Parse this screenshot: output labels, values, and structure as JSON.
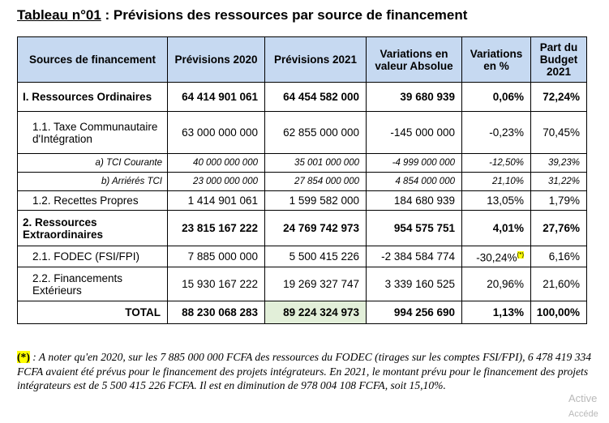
{
  "title": {
    "lead": "Tableau n°01",
    "rest": " : Prévisions des ressources par source de financement"
  },
  "table": {
    "headers": [
      "Sources de financement",
      "Prévisions 2020",
      "Prévisions 2021",
      "Variations en valeur Absolue",
      "Variations en %",
      "Part du Budget 2021"
    ],
    "rows": [
      {
        "label": "I. Ressources Ordinaires",
        "p2020": "64 414 901 061",
        "p2021": "64 454 582 000",
        "var_abs": "39 680 939",
        "var_pct": "0,06%",
        "part": "72,24%"
      },
      {
        "label": "1.1. Taxe Communautaire d'Intégration",
        "p2020": "63 000 000 000",
        "p2021": "62 855 000 000",
        "var_abs": "-145 000 000",
        "var_pct": "-0,23%",
        "part": "70,45%"
      },
      {
        "label": "a) TCI Courante",
        "p2020": "40 000 000 000",
        "p2021": "35 001 000 000",
        "var_abs": "-4 999 000 000",
        "var_pct": "-12,50%",
        "part": "39,23%"
      },
      {
        "label": "b) Arriérés TCI",
        "p2020": "23 000 000 000",
        "p2021": "27 854 000 000",
        "var_abs": "4 854 000 000",
        "var_pct": "21,10%",
        "part": "31,22%"
      },
      {
        "label": "1.2. Recettes Propres",
        "p2020": "1 414 901 061",
        "p2021": "1 599 582 000",
        "var_abs": "184 680 939",
        "var_pct": "13,05%",
        "part": "1,79%"
      },
      {
        "label": "2. Ressources Extraordinaires",
        "p2020": "23 815 167 222",
        "p2021": "24 769 742 973",
        "var_abs": "954 575 751",
        "var_pct": "4,01%",
        "part": "27,76%"
      },
      {
        "label": "2.1. FODEC (FSI/FPI)",
        "p2020": "7 885 000 000",
        "p2021": "5 500 415 226",
        "var_abs": "-2 384 584 774",
        "var_pct": "-30,24%",
        "var_pct_mark": "(*)",
        "part": "6,16%"
      },
      {
        "label": "2.2. Financements Extérieurs",
        "p2020": "15 930 167 222",
        "p2021": "19 269 327 747",
        "var_abs": "3 339 160 525",
        "var_pct": "20,96%",
        "part": "21,60%"
      },
      {
        "label": "TOTAL",
        "p2020": "88 230 068 283",
        "p2021": "89 224 324 973",
        "var_abs": "994 256 690",
        "var_pct": "1,13%",
        "part": "100,00%"
      }
    ]
  },
  "note": {
    "mark": "(*)",
    "text": " : A noter qu'en 2020, sur les 7 885 000 000 FCFA des ressources du FODEC (tirages sur les comptes FSI/FPI), 6 478 419 334 FCFA avaient été prévus pour le financement des projets intégrateurs. En 2021, le montant prévu pour le financement des projets intégrateurs est de 5 500 415 226 FCFA. Il est en diminution de 978 004 108 FCFA, soit 15,10%."
  },
  "watermark": {
    "line1": "Active",
    "line2": "Accéde"
  },
  "colors": {
    "header_bg": "#c6d9f1",
    "highlight_green": "#e2efd9",
    "highlight_yellow": "#ffff00"
  }
}
